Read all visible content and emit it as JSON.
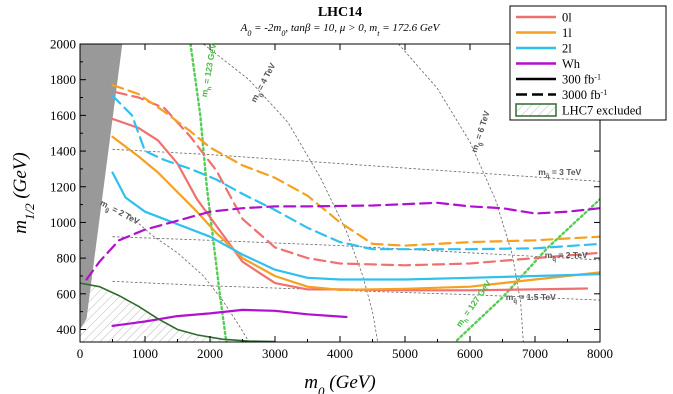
{
  "chart_data": {
    "type": "line",
    "title": "LHC14",
    "subtitle_parts": [
      {
        "t": "A",
        "b": "0",
        "after": " = -2m"
      },
      {
        "t": "",
        "b": "0",
        "after": ",  tanβ = 10,  μ > 0,  m"
      },
      {
        "t": "",
        "b": "t",
        "after": " = 172.6 GeV"
      }
    ],
    "xlabel_main": "m",
    "xlabel_sub": "0",
    "xlabel_unit": " (GeV)",
    "ylabel_main": "m",
    "ylabel_sub": "1/2",
    "ylabel_unit": " (GeV)",
    "xlim": [
      0,
      8000
    ],
    "ylim": [
      330,
      2000
    ],
    "x_ticks": [
      0,
      1000,
      2000,
      3000,
      4000,
      5000,
      6000,
      7000,
      8000
    ],
    "y_ticks": [
      400,
      600,
      800,
      1000,
      1200,
      1400,
      1600,
      1800,
      2000
    ],
    "grid": false,
    "legend_position": "top-right",
    "legend": [
      {
        "label": "0l",
        "color": "#f07070",
        "kind": "line",
        "dash": "solid"
      },
      {
        "label": "1l",
        "color": "#f5a020",
        "kind": "line",
        "dash": "solid"
      },
      {
        "label": "2l",
        "color": "#30c0f0",
        "kind": "line",
        "dash": "solid"
      },
      {
        "label": "Wh",
        "color": "#b010d0",
        "kind": "line",
        "dash": "solid"
      },
      {
        "label": "300 fb",
        "sup": "-1",
        "color": "#000000",
        "kind": "line",
        "dash": "solid"
      },
      {
        "label": "3000 fb",
        "sup": "-1",
        "color": "#000000",
        "kind": "line",
        "dash": "dashed"
      },
      {
        "label": "LHC7 excluded",
        "color": "#2e6b2e",
        "kind": "hatch",
        "dash": "solid"
      }
    ],
    "series": [
      {
        "name": "0l",
        "color": "#f07070",
        "dash": "solid",
        "points": [
          [
            500,
            1580
          ],
          [
            900,
            1530
          ],
          [
            1200,
            1460
          ],
          [
            1500,
            1330
          ],
          [
            1800,
            1130
          ],
          [
            2100,
            980
          ],
          [
            2500,
            780
          ],
          [
            3000,
            660
          ],
          [
            3500,
            625
          ],
          [
            4000,
            625
          ],
          [
            5000,
            620
          ],
          [
            6000,
            620
          ],
          [
            7000,
            625
          ],
          [
            7800,
            630
          ]
        ]
      },
      {
        "name": "1l",
        "color": "#f5a020",
        "dash": "solid",
        "points": [
          [
            500,
            1480
          ],
          [
            900,
            1370
          ],
          [
            1200,
            1280
          ],
          [
            1500,
            1170
          ],
          [
            1800,
            1060
          ],
          [
            2100,
            940
          ],
          [
            2500,
            800
          ],
          [
            3000,
            700
          ],
          [
            3500,
            640
          ],
          [
            4000,
            622
          ],
          [
            5000,
            628
          ],
          [
            6000,
            640
          ],
          [
            7000,
            680
          ],
          [
            8000,
            720
          ]
        ]
      },
      {
        "name": "2l",
        "color": "#30c0f0",
        "dash": "solid",
        "points": [
          [
            500,
            1280
          ],
          [
            700,
            1140
          ],
          [
            1000,
            1060
          ],
          [
            1500,
            990
          ],
          [
            2000,
            920
          ],
          [
            2500,
            820
          ],
          [
            3000,
            735
          ],
          [
            3500,
            690
          ],
          [
            4000,
            680
          ],
          [
            5000,
            680
          ],
          [
            6000,
            690
          ],
          [
            7000,
            700
          ],
          [
            8000,
            710
          ]
        ]
      },
      {
        "name": "Wh",
        "color": "#b010d0",
        "dash": "solid",
        "points": [
          [
            500,
            420
          ],
          [
            1000,
            445
          ],
          [
            1500,
            475
          ],
          [
            2000,
            490
          ],
          [
            2500,
            510
          ],
          [
            3000,
            505
          ],
          [
            3500,
            485
          ],
          [
            4100,
            470
          ]
        ]
      },
      {
        "name": "0l",
        "color": "#f07070",
        "dash": "dashed",
        "points": [
          [
            550,
            1730
          ],
          [
            900,
            1700
          ],
          [
            1300,
            1640
          ],
          [
            1700,
            1480
          ],
          [
            2100,
            1290
          ],
          [
            2500,
            1020
          ],
          [
            3000,
            860
          ],
          [
            3500,
            800
          ],
          [
            4000,
            770
          ],
          [
            5000,
            760
          ],
          [
            6000,
            770
          ],
          [
            7000,
            800
          ],
          [
            8000,
            830
          ]
        ]
      },
      {
        "name": "1l",
        "color": "#f5a020",
        "dash": "dashed",
        "points": [
          [
            500,
            1770
          ],
          [
            900,
            1720
          ],
          [
            1300,
            1620
          ],
          [
            1700,
            1510
          ],
          [
            2000,
            1420
          ],
          [
            2500,
            1320
          ],
          [
            3000,
            1250
          ],
          [
            3500,
            1150
          ],
          [
            4000,
            1000
          ],
          [
            4500,
            880
          ],
          [
            5000,
            870
          ],
          [
            6000,
            890
          ],
          [
            7000,
            900
          ],
          [
            8000,
            920
          ]
        ]
      },
      {
        "name": "2l",
        "color": "#30c0f0",
        "dash": "dashed",
        "points": [
          [
            500,
            1710
          ],
          [
            800,
            1600
          ],
          [
            1000,
            1400
          ],
          [
            1300,
            1350
          ],
          [
            1700,
            1300
          ],
          [
            2100,
            1240
          ],
          [
            2500,
            1160
          ],
          [
            3000,
            1070
          ],
          [
            3500,
            970
          ],
          [
            4000,
            890
          ],
          [
            4500,
            850
          ],
          [
            5000,
            850
          ],
          [
            6000,
            850
          ],
          [
            7000,
            855
          ],
          [
            8000,
            880
          ]
        ]
      },
      {
        "name": "Wh",
        "color": "#b010d0",
        "dash": "dashed",
        "points": [
          [
            100,
            680
          ],
          [
            300,
            780
          ],
          [
            600,
            900
          ],
          [
            1000,
            960
          ],
          [
            1500,
            1010
          ],
          [
            2000,
            1060
          ],
          [
            2500,
            1080
          ],
          [
            3000,
            1090
          ],
          [
            3500,
            1090
          ],
          [
            4500,
            1095
          ],
          [
            5500,
            1110
          ],
          [
            6000,
            1090
          ],
          [
            6500,
            1080
          ],
          [
            7000,
            1050
          ],
          [
            7500,
            1060
          ],
          [
            8000,
            1080
          ]
        ]
      }
    ],
    "contour_labels": [
      {
        "main": "m",
        "sub": "g̃",
        "text": " = 4 TeV"
      },
      {
        "main": "m",
        "sub": "g̃",
        "text": " = 6 TeV"
      },
      {
        "main": "m",
        "sub": "q̃",
        "text": " = 3 TeV"
      },
      {
        "main": "m",
        "sub": "g̃",
        "text": " = 2 TeV"
      },
      {
        "main": "m",
        "sub": "q̃",
        "text": " = 2 TeV"
      },
      {
        "main": "m",
        "sub": "q̃",
        "text": " = 1.5 TeV"
      },
      {
        "main": "m",
        "sub": "h",
        "text": " = 123 GeV"
      },
      {
        "main": "m",
        "sub": "h",
        "text": " = 127 GeV"
      }
    ],
    "colors": {
      "0l": "#f07070",
      "1l": "#f5a020",
      "2l": "#30c0f0",
      "Wh": "#b010d0",
      "lhc7": "#2e6b2e",
      "higgs": "#55cc55",
      "contour": "#666666",
      "theory_excluded": "#999999"
    }
  }
}
